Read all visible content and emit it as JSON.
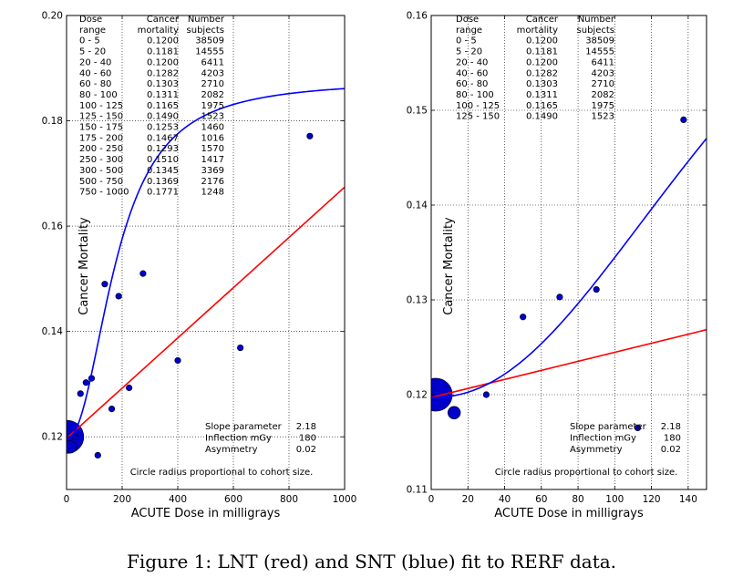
{
  "caption": "Figure 1: LNT (red) and SNT (blue) fit to RERF data.",
  "chart_data": [
    {
      "type": "scatter",
      "xlabel": "ACUTE Dose in milligrays",
      "ylabel": "Cancer Mortality",
      "xlim": [
        0,
        1000
      ],
      "ylim": [
        0.11,
        0.2
      ],
      "xticks": [
        0,
        200,
        400,
        600,
        800,
        1000
      ],
      "yticks": [
        0.12,
        0.14,
        0.16,
        0.18,
        0.2
      ],
      "ytick_labels": [
        "0.12",
        "0.14",
        "0.16",
        "0.18",
        "0.20"
      ],
      "grid": true,
      "table": {
        "headers": [
          [
            "Dose",
            "range"
          ],
          [
            "Cancer",
            "mortality"
          ],
          [
            "Number",
            "subjects"
          ]
        ],
        "rows": [
          [
            "0 - 5",
            "0.1200",
            "38509"
          ],
          [
            "5 - 20",
            "0.1181",
            "14555"
          ],
          [
            "20 - 40",
            "0.1200",
            "6411"
          ],
          [
            "40 - 60",
            "0.1282",
            "4203"
          ],
          [
            "60 - 80",
            "0.1303",
            "2710"
          ],
          [
            "80 - 100",
            "0.1311",
            "2082"
          ],
          [
            "100 - 125",
            "0.1165",
            "1975"
          ],
          [
            "125 - 150",
            "0.1490",
            "1523"
          ],
          [
            "150 - 175",
            "0.1253",
            "1460"
          ],
          [
            "175 - 200",
            "0.1467",
            "1016"
          ],
          [
            "200 - 250",
            "0.1293",
            "1570"
          ],
          [
            "250 - 300",
            "0.1510",
            "1417"
          ],
          [
            "300 - 500",
            "0.1345",
            "3369"
          ],
          [
            "500 - 750",
            "0.1369",
            "2176"
          ],
          [
            "750 - 1000",
            "0.1771",
            "1248"
          ]
        ]
      },
      "params": [
        [
          "Slope parameter",
          "2.18"
        ],
        [
          "Inflection mGy",
          "180"
        ],
        [
          "Asymmetry",
          "0.02"
        ]
      ],
      "note": "Circle radius proportional to cohort size.",
      "points": [
        {
          "x": 2.5,
          "y": 0.12,
          "n": 38509
        },
        {
          "x": 12.5,
          "y": 0.1181,
          "n": 14555
        },
        {
          "x": 30,
          "y": 0.12,
          "n": 6411
        },
        {
          "x": 50,
          "y": 0.1282,
          "n": 4203
        },
        {
          "x": 70,
          "y": 0.1303,
          "n": 2710
        },
        {
          "x": 90,
          "y": 0.1311,
          "n": 2082
        },
        {
          "x": 112.5,
          "y": 0.1165,
          "n": 1975
        },
        {
          "x": 137.5,
          "y": 0.149,
          "n": 1523
        },
        {
          "x": 162.5,
          "y": 0.1253,
          "n": 1460
        },
        {
          "x": 187.5,
          "y": 0.1467,
          "n": 1016
        },
        {
          "x": 225,
          "y": 0.1293,
          "n": 1570
        },
        {
          "x": 275,
          "y": 0.151,
          "n": 1417
        },
        {
          "x": 400,
          "y": 0.1345,
          "n": 3369
        },
        {
          "x": 625,
          "y": 0.1369,
          "n": 2176
        },
        {
          "x": 875,
          "y": 0.1771,
          "n": 1248
        }
      ],
      "lnt": {
        "color": "#ff0000",
        "intercept": 0.1197,
        "slope": 4.77e-05
      },
      "snt": {
        "color": "#0000ff",
        "base": 0.1197,
        "amplitude": 0.068,
        "inflection": 180,
        "slope_param": 2.18
      }
    },
    {
      "type": "scatter",
      "xlabel": "ACUTE Dose in milligrays",
      "ylabel": "Cancer Mortality",
      "xlim": [
        0,
        150
      ],
      "ylim": [
        0.11,
        0.16
      ],
      "xticks": [
        0,
        20,
        40,
        60,
        80,
        100,
        120,
        140
      ],
      "yticks": [
        0.11,
        0.12,
        0.13,
        0.14,
        0.15,
        0.16
      ],
      "ytick_labels": [
        "0.11",
        "0.12",
        "0.13",
        "0.14",
        "0.15",
        "0.16"
      ],
      "grid": true,
      "table": {
        "headers": [
          [
            "Dose",
            "range"
          ],
          [
            "Cancer",
            "mortality"
          ],
          [
            "Number",
            "subjects"
          ]
        ],
        "rows": [
          [
            "0 - 5",
            "0.1200",
            "38509"
          ],
          [
            "5 - 20",
            "0.1181",
            "14555"
          ],
          [
            "20 - 40",
            "0.1200",
            "6411"
          ],
          [
            "40 - 60",
            "0.1282",
            "4203"
          ],
          [
            "60 - 80",
            "0.1303",
            "2710"
          ],
          [
            "80 - 100",
            "0.1311",
            "2082"
          ],
          [
            "100 - 125",
            "0.1165",
            "1975"
          ],
          [
            "125 - 150",
            "0.1490",
            "1523"
          ]
        ]
      },
      "params": [
        [
          "Slope parameter",
          "2.18"
        ],
        [
          "Inflection mGy",
          "180"
        ],
        [
          "Asymmetry",
          "0.02"
        ]
      ],
      "note": "Circle radius proportional to cohort size.",
      "points": [
        {
          "x": 2.5,
          "y": 0.12,
          "n": 38509
        },
        {
          "x": 12.5,
          "y": 0.1181,
          "n": 14555
        },
        {
          "x": 30,
          "y": 0.12,
          "n": 6411
        },
        {
          "x": 50,
          "y": 0.1282,
          "n": 4203
        },
        {
          "x": 70,
          "y": 0.1303,
          "n": 2710
        },
        {
          "x": 90,
          "y": 0.1311,
          "n": 2082
        },
        {
          "x": 112.5,
          "y": 0.1165,
          "n": 1975
        },
        {
          "x": 137.5,
          "y": 0.149,
          "n": 1523
        }
      ],
      "lnt": {
        "color": "#ff0000",
        "intercept": 0.1197,
        "slope": 4.77e-05
      },
      "snt": {
        "color": "#0000ff",
        "base": 0.1197,
        "amplitude": 0.068,
        "inflection": 180,
        "slope_param": 2.18
      }
    }
  ]
}
